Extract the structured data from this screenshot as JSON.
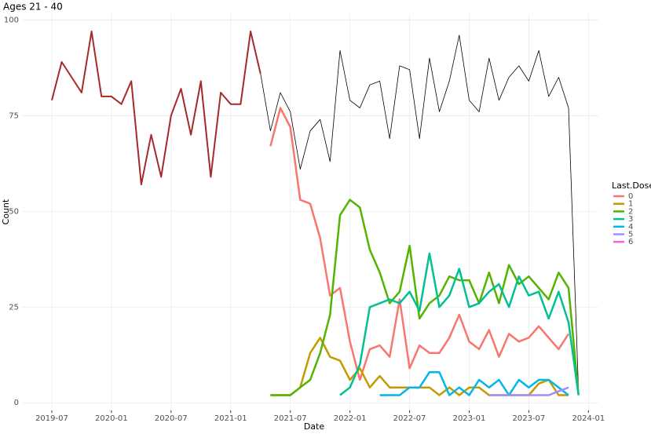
{
  "chart_data": {
    "type": "line",
    "title": "Ages 21 - 40",
    "x_label": "Date",
    "y_label": "Count",
    "legend_title": "Last.Dose",
    "legend_position": "right",
    "grid": true,
    "x": [
      "2019-07",
      "2019-08",
      "2019-09",
      "2019-10",
      "2019-11",
      "2019-12",
      "2020-01",
      "2020-02",
      "2020-03",
      "2020-04",
      "2020-05",
      "2020-06",
      "2020-07",
      "2020-08",
      "2020-09",
      "2020-10",
      "2020-11",
      "2020-12",
      "2021-01",
      "2021-02",
      "2021-03",
      "2021-04",
      "2021-05",
      "2021-06",
      "2021-07",
      "2021-08",
      "2021-09",
      "2021-10",
      "2021-11",
      "2021-12",
      "2022-01",
      "2022-02",
      "2022-03",
      "2022-04",
      "2022-05",
      "2022-06",
      "2022-07",
      "2022-08",
      "2022-09",
      "2022-10",
      "2022-11",
      "2022-12",
      "2023-01",
      "2023-02",
      "2023-03",
      "2023-04",
      "2023-05",
      "2023-06",
      "2023-07",
      "2023-08",
      "2023-09",
      "2023-10",
      "2023-11",
      "2023-12"
    ],
    "xlim": [
      "2019-04",
      "2024-02"
    ],
    "xticks": [
      "2019-07",
      "2020-01",
      "2020-07",
      "2021-01",
      "2021-07",
      "2022-01",
      "2022-07",
      "2023-01",
      "2023-07",
      "2024-01"
    ],
    "ylim": [
      -2,
      101.5
    ],
    "yticks": [
      0,
      25,
      50,
      75,
      100
    ],
    "series": [
      {
        "name": null,
        "color": "#000000",
        "width": 0.8,
        "values": [
          null,
          null,
          null,
          null,
          null,
          null,
          null,
          null,
          null,
          null,
          null,
          null,
          null,
          null,
          null,
          null,
          null,
          null,
          null,
          null,
          null,
          86,
          71,
          81,
          76,
          61,
          71,
          74,
          63,
          92,
          79,
          77,
          83,
          84,
          69,
          88,
          87,
          69,
          90,
          76,
          84,
          96,
          79,
          76,
          90,
          79,
          85,
          88,
          84,
          92,
          80,
          85,
          77,
          3
        ]
      },
      {
        "name": null,
        "color": "#a52a2a",
        "width": 2,
        "values": [
          79,
          89,
          85,
          81,
          97,
          80,
          80,
          78,
          84,
          57,
          70,
          59,
          75,
          82,
          70,
          84,
          59,
          81,
          78,
          78,
          97,
          86,
          null,
          null,
          null,
          null,
          null,
          null,
          null,
          null,
          null,
          null,
          null,
          null,
          null,
          null,
          null,
          null,
          null,
          null,
          null,
          null,
          null,
          null,
          null,
          null,
          null,
          null,
          null,
          null,
          null,
          null,
          null,
          null
        ]
      },
      {
        "name": "0",
        "color": "#F8766D",
        "width": 2.5,
        "values": [
          null,
          null,
          null,
          null,
          null,
          null,
          null,
          null,
          null,
          null,
          null,
          null,
          null,
          null,
          null,
          null,
          null,
          null,
          null,
          null,
          null,
          null,
          67,
          77,
          72,
          53,
          52,
          43,
          28,
          30,
          16,
          6,
          14,
          15,
          12,
          27,
          9,
          15,
          13,
          13,
          17,
          23,
          16,
          14,
          19,
          12,
          18,
          16,
          17,
          20,
          17,
          14,
          18,
          null
        ]
      },
      {
        "name": "1",
        "color": "#C49A00",
        "width": 2.5,
        "values": [
          null,
          null,
          null,
          null,
          null,
          null,
          null,
          null,
          null,
          null,
          null,
          null,
          null,
          null,
          null,
          null,
          null,
          null,
          null,
          null,
          null,
          null,
          2,
          2,
          2,
          4,
          13,
          17,
          12,
          11,
          6,
          9,
          4,
          7,
          4,
          4,
          4,
          4,
          4,
          2,
          4,
          2,
          4,
          4,
          2,
          2,
          2,
          2,
          2,
          5,
          6,
          2,
          2,
          null
        ]
      },
      {
        "name": "2",
        "color": "#53B400",
        "width": 2.5,
        "values": [
          null,
          null,
          null,
          null,
          null,
          null,
          null,
          null,
          null,
          null,
          null,
          null,
          null,
          null,
          null,
          null,
          null,
          null,
          null,
          null,
          null,
          null,
          2,
          2,
          2,
          4,
          6,
          13,
          23,
          49,
          53,
          51,
          40,
          34,
          26,
          29,
          41,
          22,
          26,
          28,
          33,
          32,
          32,
          26,
          34,
          26,
          36,
          31,
          33,
          30,
          27,
          34,
          30,
          2
        ]
      },
      {
        "name": "3",
        "color": "#00C094",
        "width": 2.5,
        "values": [
          null,
          null,
          null,
          null,
          null,
          null,
          null,
          null,
          null,
          null,
          null,
          null,
          null,
          null,
          null,
          null,
          null,
          null,
          null,
          null,
          null,
          null,
          null,
          null,
          null,
          null,
          null,
          null,
          null,
          2,
          4,
          10,
          25,
          26,
          27,
          26,
          29,
          24,
          39,
          25,
          28,
          35,
          25,
          26,
          29,
          31,
          25,
          33,
          28,
          29,
          22,
          29,
          21,
          2
        ]
      },
      {
        "name": "4",
        "color": "#00B6EB",
        "width": 2.5,
        "values": [
          null,
          null,
          null,
          null,
          null,
          null,
          null,
          null,
          null,
          null,
          null,
          null,
          null,
          null,
          null,
          null,
          null,
          null,
          null,
          null,
          null,
          null,
          null,
          null,
          null,
          null,
          null,
          null,
          null,
          null,
          null,
          null,
          null,
          2,
          2,
          2,
          4,
          4,
          8,
          8,
          2,
          4,
          2,
          6,
          4,
          6,
          2,
          6,
          4,
          6,
          6,
          4,
          2,
          null
        ]
      },
      {
        "name": "5",
        "color": "#A58AFF",
        "width": 2.5,
        "values": [
          null,
          null,
          null,
          null,
          null,
          null,
          null,
          null,
          null,
          null,
          null,
          null,
          null,
          null,
          null,
          null,
          null,
          null,
          null,
          null,
          null,
          null,
          null,
          null,
          null,
          null,
          null,
          null,
          null,
          null,
          null,
          null,
          null,
          null,
          null,
          null,
          null,
          null,
          null,
          null,
          null,
          null,
          null,
          null,
          2,
          2,
          2,
          2,
          2,
          2,
          2,
          3,
          4,
          null
        ]
      },
      {
        "name": "6",
        "color": "#FB61D7",
        "width": 2.5,
        "values": [
          null,
          null,
          null,
          null,
          null,
          null,
          null,
          null,
          null,
          null,
          null,
          null,
          null,
          null,
          null,
          null,
          null,
          null,
          null,
          null,
          null,
          null,
          null,
          null,
          null,
          null,
          null,
          null,
          null,
          null,
          null,
          null,
          null,
          null,
          null,
          null,
          null,
          null,
          null,
          null,
          null,
          null,
          null,
          null,
          null,
          null,
          null,
          null,
          null,
          null,
          null,
          null,
          null,
          null
        ]
      }
    ]
  }
}
